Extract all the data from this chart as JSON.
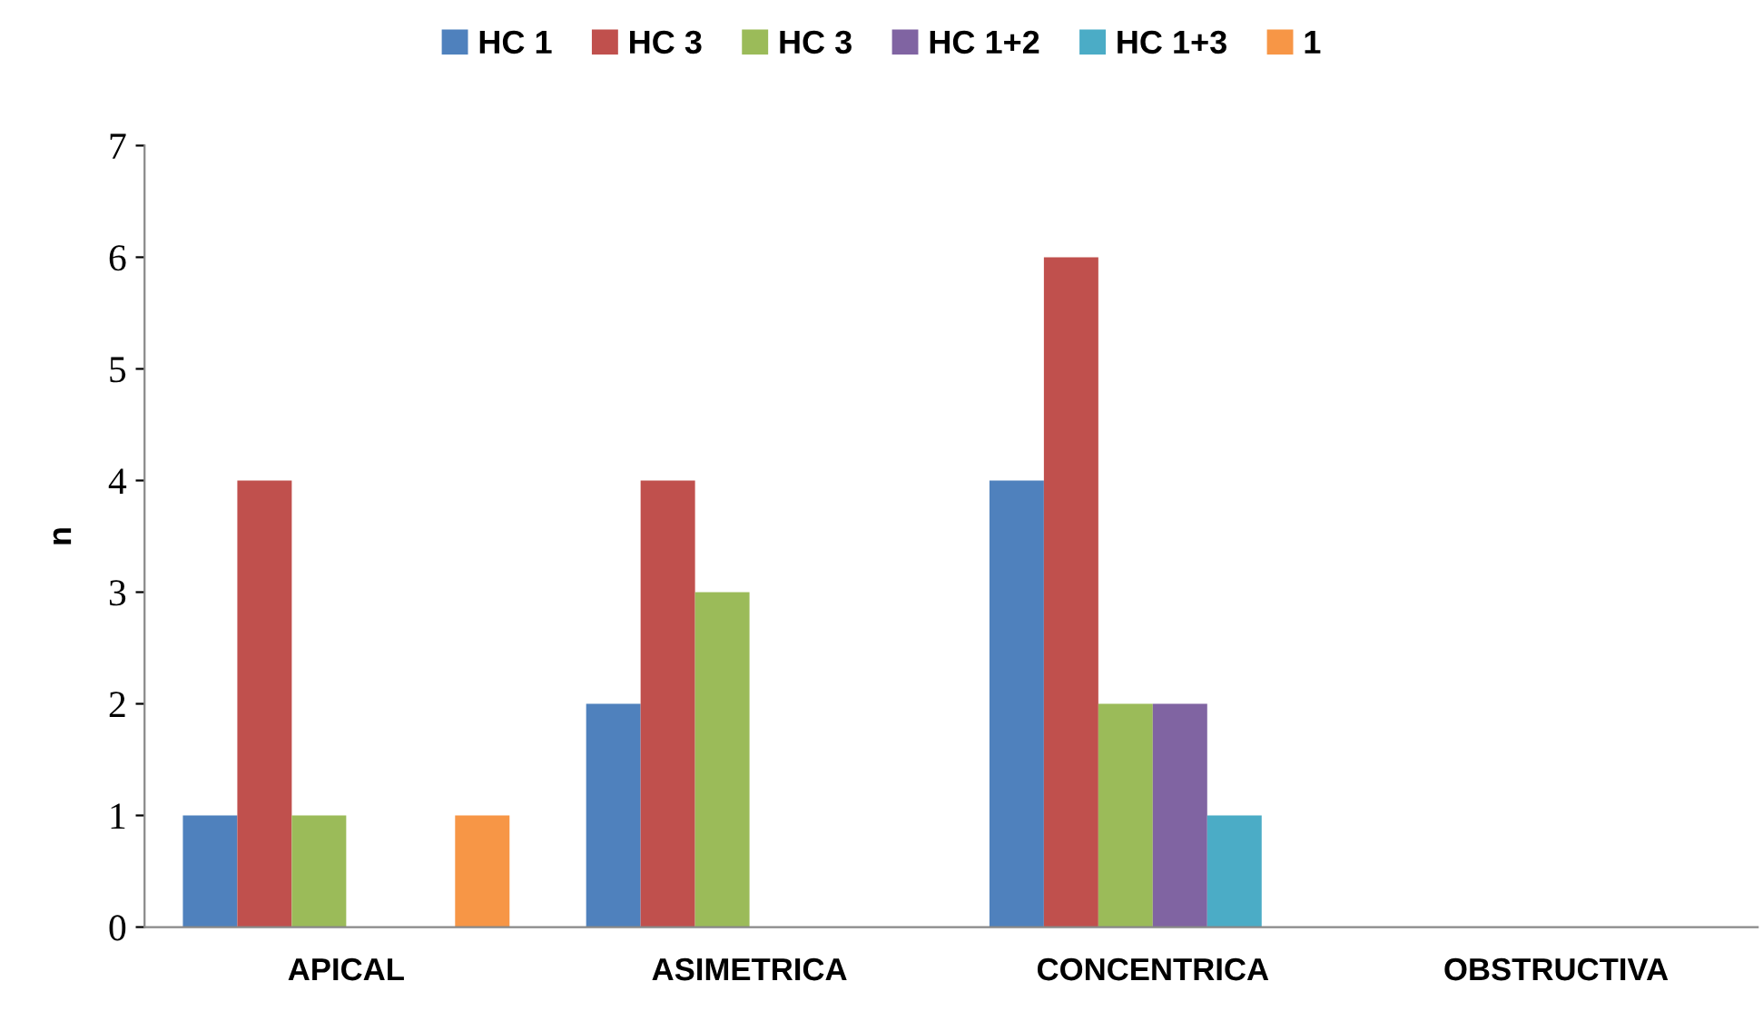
{
  "chart_data": {
    "type": "bar",
    "ylabel": "n",
    "categories": [
      "APICAL",
      "ASIMETRICA",
      "CONCENTRICA",
      "OBSTRUCTIVA"
    ],
    "series": [
      {
        "name": "HC 1",
        "color": "#4f81bd",
        "values": [
          1,
          2,
          4,
          null
        ]
      },
      {
        "name": "HC 3",
        "color": "#c0504d",
        "values": [
          4,
          4,
          6,
          null
        ]
      },
      {
        "name": "HC 3",
        "color": "#9bbb59",
        "values": [
          1,
          3,
          2,
          null
        ]
      },
      {
        "name": "HC 1+2",
        "color": "#8064a2",
        "values": [
          null,
          null,
          2,
          null
        ]
      },
      {
        "name": "HC 1+3",
        "color": "#4bacc6",
        "values": [
          null,
          null,
          1,
          null
        ]
      },
      {
        "name": "1",
        "color": "#f79646",
        "values": [
          1,
          null,
          null,
          null
        ]
      }
    ],
    "ylim": [
      0,
      7
    ],
    "yticks": [
      0,
      1,
      2,
      3,
      4,
      5,
      6,
      7
    ],
    "grid": false,
    "legend": "top"
  }
}
